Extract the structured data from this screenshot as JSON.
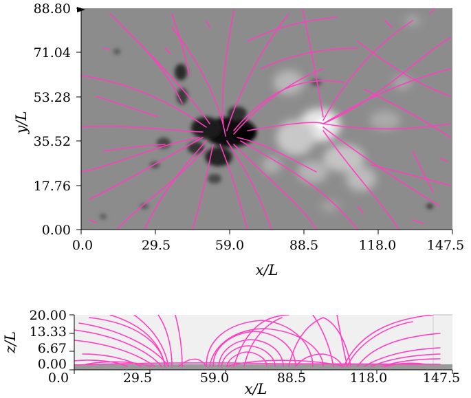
{
  "colors": {
    "field_line": "#ff3fbf",
    "magnetogram_background": "#8c8c8c",
    "negative_polarity": "#141414",
    "positive_polarity": "#f4f4f4",
    "side_panel_background": "#f0f0f0"
  },
  "top_panel": {
    "xlabel": "x/L",
    "ylabel": "y/L",
    "x_ticks": [
      "0.0",
      "29.5",
      "59.0",
      "88.5",
      "118.0",
      "147.5"
    ],
    "y_ticks": [
      "0.00",
      "17.76",
      "35.52",
      "53.28",
      "71.04",
      "88.80"
    ],
    "xlim": [
      0.0,
      147.5
    ],
    "ylim": [
      0.0,
      88.8
    ]
  },
  "bottom_panel": {
    "xlabel": "x/L",
    "ylabel": "z/L",
    "x_ticks": [
      "0.0",
      "29.5",
      "59.0",
      "88.5",
      "118.0",
      "147.5"
    ],
    "z_ticks": [
      "0.00",
      "6.67",
      "13.33",
      "20.00"
    ],
    "xlim": [
      0.0,
      147.5
    ],
    "zlim": [
      0.0,
      20.0
    ]
  }
}
